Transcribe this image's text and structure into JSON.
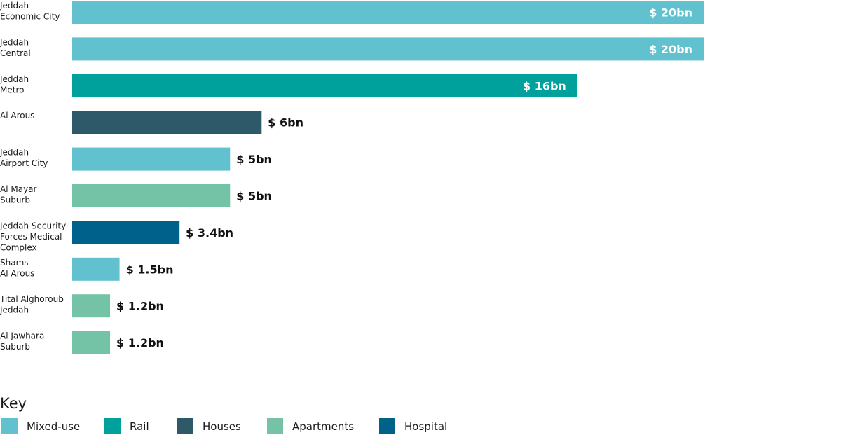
{
  "chart_data": {
    "type": "bar",
    "orientation": "horizontal",
    "categories": [
      [
        "Jeddah",
        "Economic City"
      ],
      [
        "Jeddah",
        "Central"
      ],
      [
        "Jeddah",
        "Metro"
      ],
      [
        "Al Arous"
      ],
      [
        "Jeddah",
        "Airport City"
      ],
      [
        "Al Mayar",
        "Suburb"
      ],
      [
        "Jeddah Security",
        "Forces Medical",
        "Complex"
      ],
      [
        "Shams",
        "Al Arous"
      ],
      [
        "Tital Alghoroub",
        "Jeddah"
      ],
      [
        "Al Jawhara",
        "Suburb"
      ]
    ],
    "values": [
      20,
      20,
      16,
      6,
      5,
      5,
      3.4,
      1.5,
      1.2,
      1.2
    ],
    "value_labels": [
      "$ 20bn",
      "$ 20bn",
      "$ 16bn",
      "$ 6bn",
      "$ 5bn",
      "$ 5bn",
      "$ 3.4bn",
      "$ 1.5bn",
      "$ 1.2bn",
      "$ 1.2bn"
    ],
    "types": [
      "Mixed-use",
      "Mixed-use",
      "Rail",
      "Houses",
      "Mixed-use",
      "Apartments",
      "Hospital",
      "Mixed-use",
      "Apartments",
      "Apartments"
    ],
    "unit": "$ bn",
    "xlim": [
      0,
      20
    ],
    "grid": false,
    "legend_position": "bottom-left"
  },
  "legend": {
    "title": "Key",
    "items": [
      {
        "label": "Mixed-use",
        "color": "#62C1CF"
      },
      {
        "label": "Rail",
        "color": "#00A19C"
      },
      {
        "label": "Houses",
        "color": "#2E5968"
      },
      {
        "label": "Apartments",
        "color": "#74C3A6"
      },
      {
        "label": "Hospital",
        "color": "#00628B"
      }
    ]
  },
  "colors": {
    "label_inside": "#ffffff",
    "label_outside": "#111111"
  }
}
